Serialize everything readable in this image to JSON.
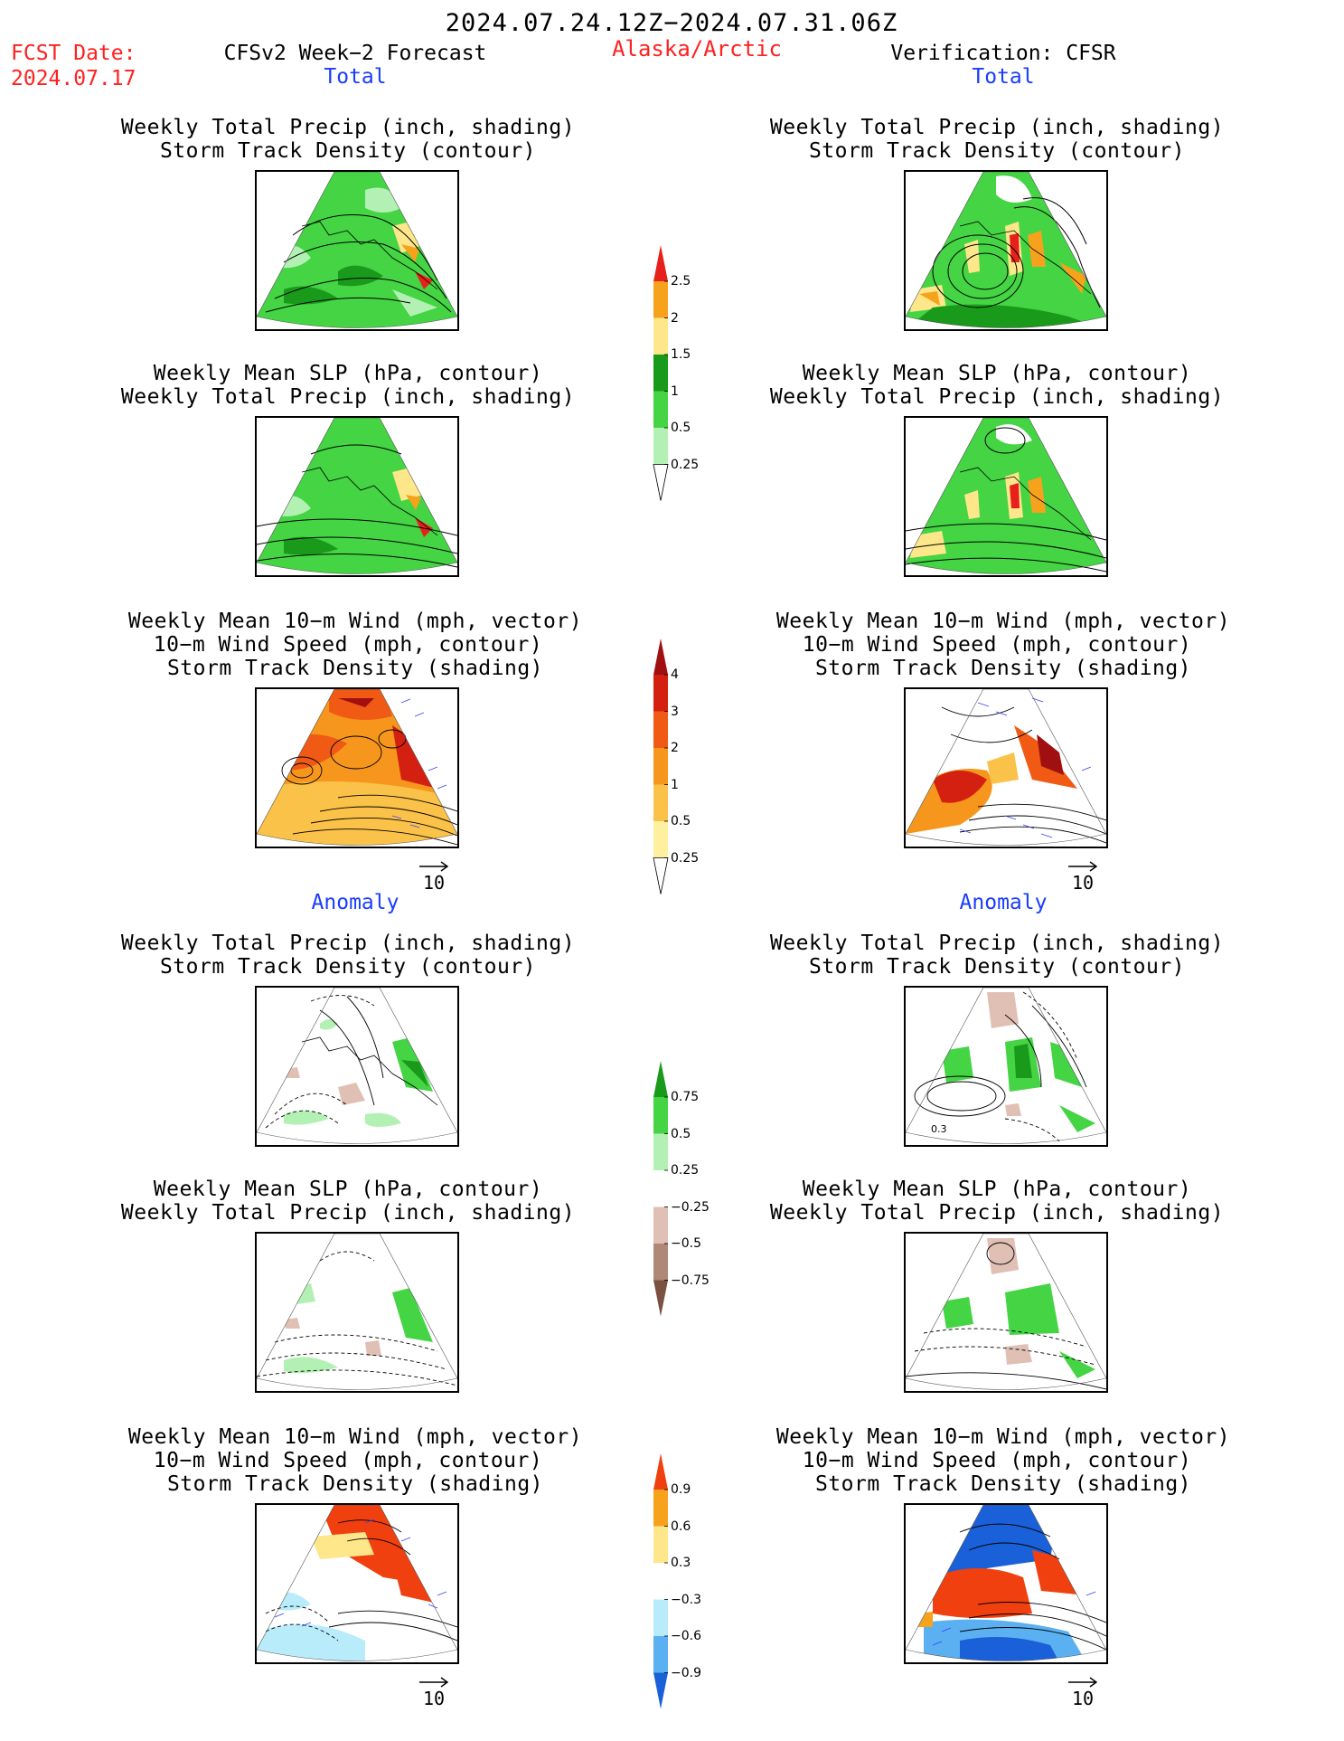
{
  "header": {
    "date_range": "2024.07.24.12Z−2024.07.31.06Z",
    "fcst_label": "FCST Date:",
    "fcst_date": "2024.07.17",
    "region": "Alaska/Arctic",
    "left_title": "CFSv2 Week−2 Forecast",
    "right_title": "Verification: CFSR"
  },
  "sections": {
    "total": "Total",
    "anomaly": "Anomaly"
  },
  "panel_titles": {
    "precip_storm": [
      "Weekly Total Precip (inch, shading)",
      "Storm Track Density (contour)"
    ],
    "slp_precip": [
      "Weekly Mean SLP (hPa, contour)",
      "Weekly Total Precip (inch, shading)"
    ],
    "wind_storm": [
      "Weekly Mean 10−m Wind (mph, vector)",
      "10−m Wind Speed (mph, contour)",
      "Storm Track Density (shading)"
    ]
  },
  "vector_ref": "10",
  "contour_label": "0.3",
  "colorbars": {
    "precip_total": {
      "labels": [
        "2.5",
        "2",
        "1.5",
        "1",
        "0.5",
        "0.25"
      ],
      "colors": [
        "#e8201c",
        "#f7a21c",
        "#fde78a",
        "#1a9a1a",
        "#44d444",
        "#b3f0b3"
      ]
    },
    "storm_total": {
      "labels": [
        "4",
        "3",
        "2",
        "1",
        "0.5",
        "0.25"
      ],
      "colors": [
        "#a01010",
        "#d42010",
        "#f05a14",
        "#f7961c",
        "#fbc24a",
        "#fff0a0",
        "#fffce0"
      ]
    },
    "precip_anom": {
      "labels": [
        "0.75",
        "0.5",
        "0.25",
        "−0.25",
        "−0.5",
        "−0.75"
      ],
      "colors": [
        "#1a9a1a",
        "#44d444",
        "#b3f0b3",
        "#ffffff",
        "#e0c0b4",
        "#b08878",
        "#7a5040"
      ]
    },
    "storm_anom": {
      "labels": [
        "0.9",
        "0.6",
        "0.3",
        "−0.3",
        "−0.6",
        "−0.9"
      ],
      "colors": [
        "#f04010",
        "#f7a21c",
        "#fde78a",
        "#ffffff",
        "#b8ecfa",
        "#5ab0f0",
        "#1a60d8"
      ]
    }
  }
}
